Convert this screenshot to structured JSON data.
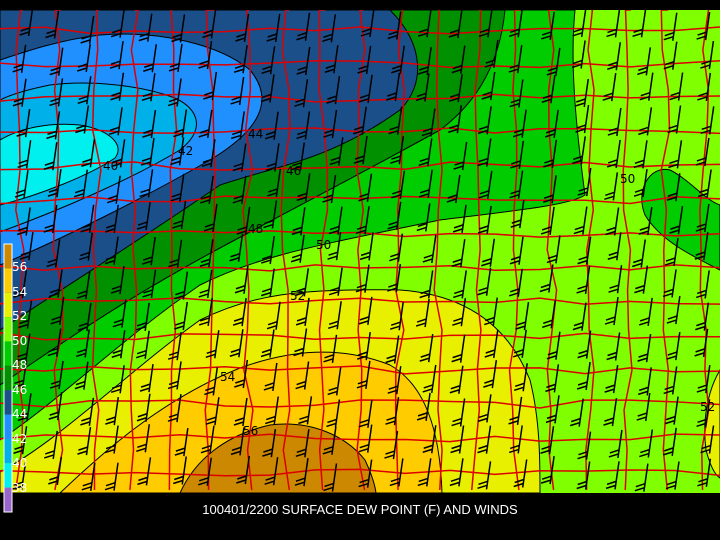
{
  "title": "100401/2200 SURFACE DEW POINT (F) AND WINDS",
  "units": "F",
  "legend": {
    "labels": [
      "56",
      "54",
      "52",
      "50",
      "48",
      "46",
      "44",
      "42",
      "40",
      "38"
    ],
    "colors": [
      "#cc8800",
      "#ffcc00",
      "#e8f000",
      "#80ff00",
      "#00cc00",
      "#009000",
      "#1a4f8a",
      "#2090ff",
      "#00b0e8",
      "#00f0f0",
      "#9966cc"
    ]
  },
  "contour_labels": [
    "40",
    "42",
    "44",
    "46",
    "48",
    "50",
    "52",
    "54",
    "56",
    "50",
    "52"
  ],
  "colors": {
    "county_lines": "#dd0000",
    "contour_lines": "#000000",
    "wind_barbs": "#000000",
    "background": "#000000"
  }
}
